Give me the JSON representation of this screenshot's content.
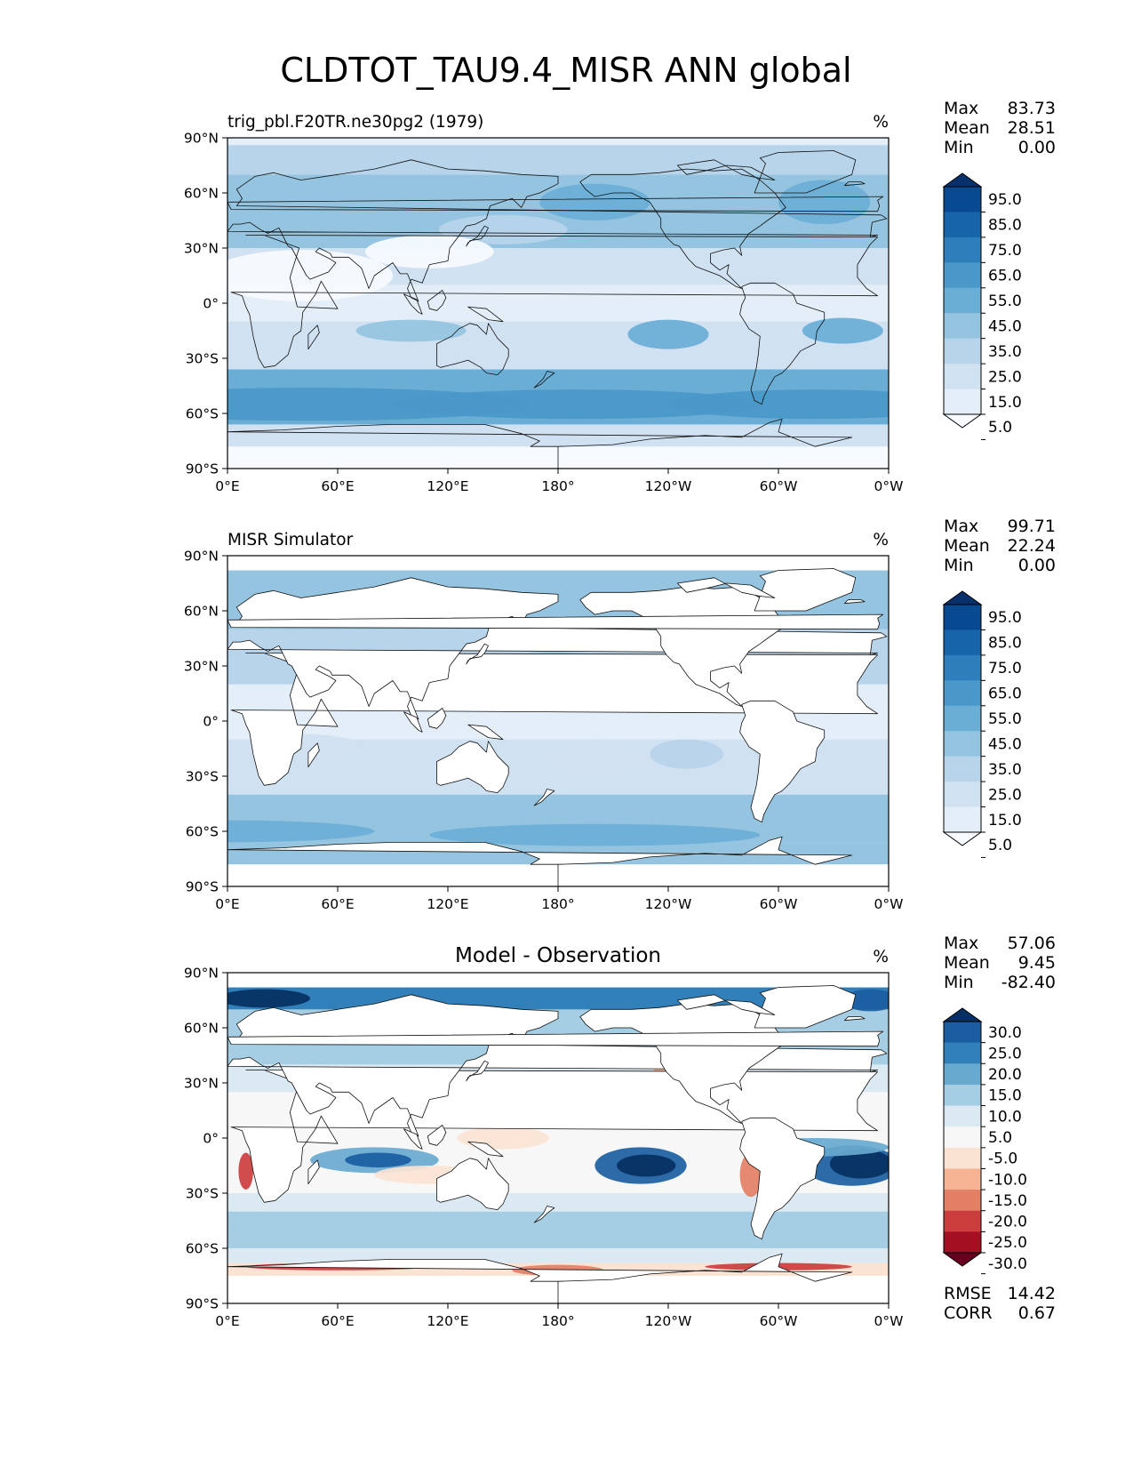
{
  "figure_title": "CLDTOT_TAU9.4_MISR ANN global",
  "unit": "%",
  "lon_ticks": [
    "0°E",
    "60°E",
    "120°E",
    "180°",
    "120°W",
    "60°W",
    "0°W"
  ],
  "lat_ticks": [
    "90°N",
    "60°N",
    "30°N",
    "0°",
    "30°S",
    "60°S",
    "90°S"
  ],
  "colorbars": {
    "abs": {
      "colors": [
        "#f7fbff",
        "#e3eef9",
        "#d0e1f2",
        "#b7d4ea",
        "#94c4df",
        "#6aaed6",
        "#4a98c9",
        "#2e7ebc",
        "#1764ab",
        "#084a91",
        "#08306b"
      ],
      "labels": [
        "95.0",
        "85.0",
        "75.0",
        "65.0",
        "55.0",
        "45.0",
        "35.0",
        "25.0",
        "15.0",
        "5.0"
      ]
    },
    "diff": {
      "colors": [
        "#67001f",
        "#a50f22",
        "#cc3d3e",
        "#e37f65",
        "#f5b394",
        "#fbe3d4",
        "#f7f7f7",
        "#dbe9f2",
        "#a5cde3",
        "#68a9cf",
        "#3180b9",
        "#1a5da1",
        "#053061"
      ],
      "labels": [
        "30.0",
        "25.0",
        "20.0",
        "15.0",
        "10.0",
        "5.0",
        "-5.0",
        "-10.0",
        "-15.0",
        "-20.0",
        "-25.0",
        "-30.0"
      ]
    }
  },
  "chart_data": [
    {
      "type": "heatmap",
      "panel": "test",
      "title": "trig_pbl.F20TR.ne30pg2 (1979)",
      "unit": "%",
      "stats": [
        {
          "label": "Max",
          "value": "83.73"
        },
        {
          "label": "Mean",
          "value": "28.51"
        },
        {
          "label": "Min",
          "value": "0.00"
        }
      ],
      "x_range": [
        0,
        360
      ],
      "y_range": [
        -90,
        90
      ],
      "colorbar_levels": [
        5,
        15,
        25,
        35,
        45,
        55,
        65,
        75,
        85,
        95
      ]
    },
    {
      "type": "heatmap",
      "panel": "reference",
      "title": "MISR Simulator",
      "unit": "%",
      "stats": [
        {
          "label": "Max",
          "value": "99.71"
        },
        {
          "label": "Mean",
          "value": "22.24"
        },
        {
          "label": "Min",
          "value": "0.00"
        }
      ],
      "x_range": [
        0,
        360
      ],
      "y_range": [
        -90,
        90
      ],
      "colorbar_levels": [
        5,
        15,
        25,
        35,
        45,
        55,
        65,
        75,
        85,
        95
      ]
    },
    {
      "type": "heatmap",
      "panel": "difference",
      "title": "Model - Observation",
      "unit": "%",
      "stats": [
        {
          "label": "Max",
          "value": "57.06"
        },
        {
          "label": "Mean",
          "value": "9.45"
        },
        {
          "label": "Min",
          "value": "-82.40"
        }
      ],
      "extra_stats": [
        {
          "label": "RMSE",
          "value": "14.42"
        },
        {
          "label": "CORR",
          "value": "0.67"
        }
      ],
      "x_range": [
        0,
        360
      ],
      "y_range": [
        -90,
        90
      ],
      "colorbar_levels": [
        -30,
        -25,
        -20,
        -15,
        -10,
        -5,
        5,
        10,
        15,
        20,
        25,
        30
      ]
    }
  ]
}
